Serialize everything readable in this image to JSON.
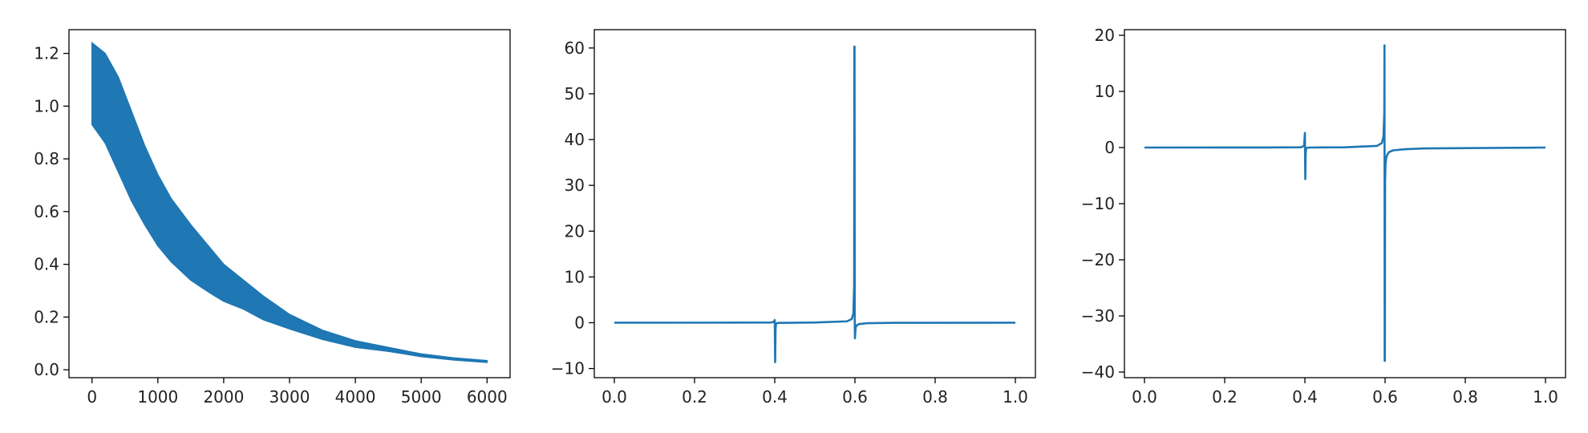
{
  "chart_data": [
    {
      "type": "line",
      "title": "",
      "xlabel": "",
      "ylabel": "",
      "xlim": [
        -350,
        6350
      ],
      "ylim": [
        -0.03,
        1.29
      ],
      "xticks": [
        0,
        1000,
        2000,
        3000,
        4000,
        5000,
        6000
      ],
      "xtick_labels": [
        "0",
        "1000",
        "2000",
        "3000",
        "4000",
        "5000",
        "6000"
      ],
      "yticks": [
        0.0,
        0.2,
        0.4,
        0.6,
        0.8,
        1.0,
        1.2
      ],
      "ytick_labels": [
        "0.0",
        "0.2",
        "0.4",
        "0.6",
        "0.8",
        "1.0",
        "1.2"
      ],
      "grid": false,
      "series": [
        {
          "color": "#1f77b4",
          "style": "dense-oscillation-band",
          "x": [
            0,
            200,
            400,
            600,
            800,
            1000,
            1200,
            1500,
            1800,
            2000,
            2300,
            2600,
            3000,
            3500,
            4000,
            4500,
            5000,
            5500,
            6000
          ],
          "upper": [
            1.24,
            1.2,
            1.11,
            0.98,
            0.85,
            0.74,
            0.65,
            0.55,
            0.46,
            0.4,
            0.34,
            0.28,
            0.21,
            0.15,
            0.11,
            0.085,
            0.06,
            0.045,
            0.035
          ],
          "lower": [
            0.93,
            0.86,
            0.75,
            0.64,
            0.55,
            0.47,
            0.41,
            0.34,
            0.29,
            0.26,
            0.23,
            0.19,
            0.155,
            0.115,
            0.085,
            0.07,
            0.05,
            0.037,
            0.028
          ]
        }
      ]
    },
    {
      "type": "line",
      "title": "",
      "xlabel": "",
      "ylabel": "",
      "xlim": [
        -0.05,
        1.05
      ],
      "ylim": [
        -12,
        64
      ],
      "xticks": [
        0.0,
        0.2,
        0.4,
        0.6,
        0.8,
        1.0
      ],
      "xtick_labels": [
        "0.0",
        "0.2",
        "0.4",
        "0.6",
        "0.8",
        "1.0"
      ],
      "yticks": [
        -10,
        0,
        10,
        20,
        30,
        40,
        50,
        60
      ],
      "ytick_labels": [
        "−10",
        "0",
        "10",
        "20",
        "30",
        "40",
        "50",
        "60"
      ],
      "grid": false,
      "series": [
        {
          "color": "#1f77b4",
          "x": [
            0.0,
            0.3,
            0.39,
            0.398,
            0.4,
            0.401,
            0.402,
            0.403,
            0.405,
            0.41,
            0.5,
            0.58,
            0.592,
            0.596,
            0.598,
            0.5985,
            0.599,
            0.5995,
            0.6,
            0.601,
            0.602,
            0.604,
            0.61,
            0.63,
            0.7,
            1.0
          ],
          "y": [
            0.0,
            0.02,
            0.05,
            0.2,
            0.6,
            -8.6,
            -1.5,
            -0.3,
            -0.1,
            -0.04,
            0.05,
            0.3,
            0.8,
            2.0,
            8.0,
            60.3,
            60.3,
            0.5,
            -3.4,
            -1.8,
            -1.0,
            -0.6,
            -0.3,
            -0.1,
            -0.02,
            0.0
          ]
        }
      ]
    },
    {
      "type": "line",
      "title": "",
      "xlabel": "",
      "ylabel": "",
      "xlim": [
        -0.05,
        1.05
      ],
      "ylim": [
        -41,
        21
      ],
      "xticks": [
        0.0,
        0.2,
        0.4,
        0.6,
        0.8,
        1.0
      ],
      "xtick_labels": [
        "0.0",
        "0.2",
        "0.4",
        "0.6",
        "0.8",
        "1.0"
      ],
      "yticks": [
        -40,
        -30,
        -20,
        -10,
        0,
        10,
        20
      ],
      "ytick_labels": [
        "−40",
        "−30",
        "−20",
        "−10",
        "0",
        "10",
        "20"
      ],
      "grid": false,
      "series": [
        {
          "color": "#1f77b4",
          "x": [
            0.0,
            0.3,
            0.39,
            0.398,
            0.4,
            0.401,
            0.402,
            0.403,
            0.405,
            0.41,
            0.5,
            0.58,
            0.592,
            0.596,
            0.598,
            0.5985,
            0.599,
            0.5995,
            0.6,
            0.601,
            0.603,
            0.606,
            0.61,
            0.62,
            0.65,
            0.7,
            1.0
          ],
          "y": [
            0.0,
            0.01,
            0.05,
            0.3,
            2.6,
            -5.6,
            -1.0,
            -0.2,
            -0.05,
            0.0,
            0.05,
            0.3,
            0.8,
            2.0,
            6.0,
            18.2,
            -38.0,
            -38.0,
            -6.0,
            -3.0,
            -1.8,
            -1.2,
            -0.8,
            -0.5,
            -0.3,
            -0.15,
            0.0
          ]
        }
      ]
    }
  ]
}
